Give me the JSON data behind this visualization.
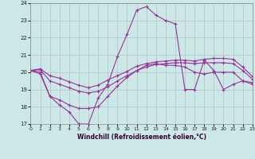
{
  "xlabel": "Windchill (Refroidissement éolien,°C)",
  "background_color": "#cce8e6",
  "grid_color": "#aabbbb",
  "line_color": "#993399",
  "xlim": [
    0,
    23
  ],
  "ylim": [
    17,
    24
  ],
  "yticks": [
    17,
    18,
    19,
    20,
    21,
    22,
    23,
    24
  ],
  "xticks": [
    0,
    1,
    2,
    3,
    4,
    5,
    6,
    7,
    8,
    9,
    10,
    11,
    12,
    13,
    14,
    15,
    16,
    17,
    18,
    19,
    20,
    21,
    22,
    23
  ],
  "series": [
    [
      20.1,
      19.9,
      18.6,
      18.1,
      17.7,
      17.0,
      17.0,
      18.5,
      19.3,
      20.9,
      22.2,
      23.6,
      23.8,
      23.3,
      23.0,
      22.8,
      19.0,
      19.0,
      20.7,
      20.1,
      19.0,
      19.3,
      19.5,
      19.3
    ],
    [
      20.1,
      20.0,
      18.6,
      18.4,
      18.1,
      17.9,
      17.9,
      18.0,
      18.6,
      19.2,
      19.7,
      20.1,
      20.4,
      20.5,
      20.4,
      20.4,
      20.3,
      20.0,
      19.9,
      20.0,
      20.0,
      20.0,
      19.5,
      19.4
    ],
    [
      20.1,
      20.15,
      19.5,
      19.3,
      19.1,
      18.9,
      18.8,
      18.9,
      19.15,
      19.5,
      19.8,
      20.1,
      20.3,
      20.45,
      20.5,
      20.55,
      20.55,
      20.5,
      20.55,
      20.55,
      20.55,
      20.5,
      20.1,
      19.6
    ],
    [
      20.1,
      20.2,
      19.8,
      19.65,
      19.45,
      19.25,
      19.1,
      19.25,
      19.55,
      19.8,
      20.05,
      20.35,
      20.5,
      20.6,
      20.65,
      20.7,
      20.7,
      20.65,
      20.75,
      20.8,
      20.8,
      20.75,
      20.3,
      19.75
    ]
  ]
}
